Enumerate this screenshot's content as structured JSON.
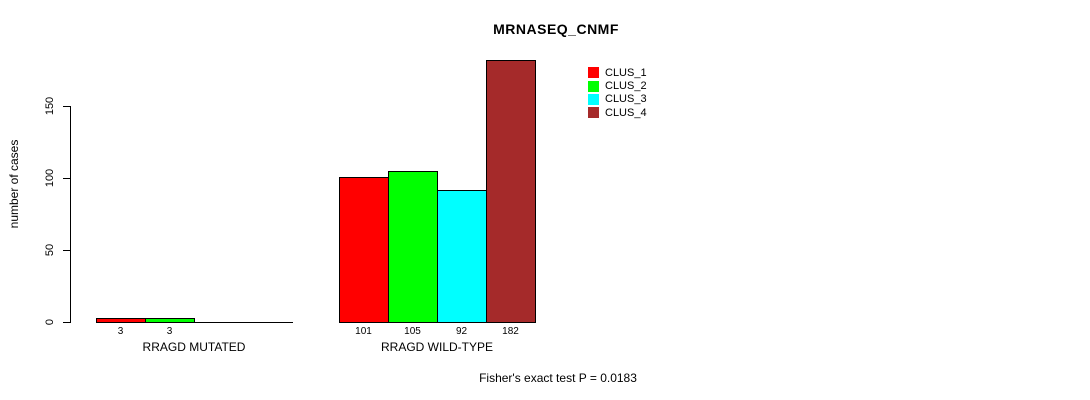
{
  "chart_data": {
    "type": "bar",
    "title": "MRNASEQ_CNMF",
    "ylabel": "number of cases",
    "xlabel": "",
    "annotation": "Fisher's exact test P = 0.0183",
    "categories": [
      "RRAGD MUTATED",
      "RRAGD WILD-TYPE"
    ],
    "series": [
      {
        "name": "CLUS_1",
        "color": "#ff0000",
        "values": [
          3,
          101
        ]
      },
      {
        "name": "CLUS_2",
        "color": "#00ff00",
        "values": [
          3,
          105
        ]
      },
      {
        "name": "CLUS_3",
        "color": "#00ffff",
        "values": [
          0,
          92
        ]
      },
      {
        "name": "CLUS_4",
        "color": "#a52a2a",
        "values": [
          0,
          182
        ]
      }
    ],
    "bar_value_labels": [
      [
        "3",
        "3",
        "",
        ""
      ],
      [
        "101",
        "105",
        "92",
        "182"
      ]
    ],
    "yticks": [
      0,
      50,
      100,
      150
    ],
    "ylim": [
      0,
      150
    ],
    "grid": false,
    "legend_position": "top-right",
    "legend": [
      {
        "label": "CLUS_1",
        "color": "#ff0000"
      },
      {
        "label": "CLUS_2",
        "color": "#00ff00"
      },
      {
        "label": "CLUS_3",
        "color": "#00ffff"
      },
      {
        "label": "CLUS_4",
        "color": "#a52a2a"
      }
    ]
  }
}
